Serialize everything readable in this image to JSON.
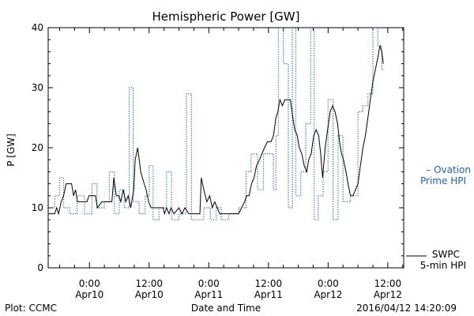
{
  "chart_data": {
    "type": "line",
    "title": "Hemispheric Power [GW]",
    "xlabel": "Date and Time",
    "ylabel": "P [GW]",
    "footer_left": "Plot: CCMC",
    "footer_right": "2016/04/12 14:20:09",
    "x_unit": "hours since 2016-04-09 00:00",
    "xlim": [
      15.7,
      87.2
    ],
    "ylim": [
      0,
      40
    ],
    "y_ticks": [
      0,
      10,
      20,
      30,
      40
    ],
    "x_ticks": [
      {
        "x": 24,
        "line1": "0:00",
        "line2": "Apr10"
      },
      {
        "x": 36,
        "line1": "12:00",
        "line2": "Apr10"
      },
      {
        "x": 48,
        "line1": "0:00",
        "line2": "Apr11"
      },
      {
        "x": 60,
        "line1": "12:00",
        "line2": "Apr11"
      },
      {
        "x": 72,
        "line1": "0:00",
        "line2": "Apr12"
      },
      {
        "x": 84,
        "line1": "12:00",
        "line2": "Apr12"
      }
    ],
    "legend": [
      {
        "label_line1": "– Ovation",
        "label_line2": "Prime HPI",
        "color": "#1f5fbf",
        "style": "dotted"
      },
      {
        "label_line1": "SWPC",
        "label_line2": "5-min HPI",
        "color": "#000000",
        "style": "solid"
      }
    ],
    "series": [
      {
        "name": "SWPC 5-min HPI",
        "color": "#000000",
        "style": "solid",
        "points": [
          [
            15.8,
            9
          ],
          [
            17.0,
            9
          ],
          [
            17.4,
            10
          ],
          [
            17.8,
            9
          ],
          [
            18.3,
            11
          ],
          [
            18.8,
            12
          ],
          [
            19.3,
            14
          ],
          [
            20.4,
            14
          ],
          [
            20.8,
            12
          ],
          [
            21.2,
            13
          ],
          [
            21.6,
            11
          ],
          [
            23.5,
            11
          ],
          [
            23.9,
            12
          ],
          [
            25.2,
            12
          ],
          [
            25.6,
            10
          ],
          [
            26.5,
            11
          ],
          [
            28.5,
            11
          ],
          [
            28.9,
            15
          ],
          [
            29.4,
            12
          ],
          [
            29.9,
            12
          ],
          [
            30.3,
            11
          ],
          [
            30.8,
            13
          ],
          [
            31.3,
            11
          ],
          [
            31.8,
            12
          ],
          [
            32.3,
            10
          ],
          [
            32.9,
            13
          ],
          [
            33.2,
            18
          ],
          [
            33.7,
            20
          ],
          [
            34.3,
            16
          ],
          [
            35.0,
            14
          ],
          [
            35.4,
            13
          ],
          [
            35.9,
            11
          ],
          [
            36.4,
            10
          ],
          [
            38.8,
            10
          ],
          [
            39.1,
            9
          ],
          [
            39.5,
            10
          ],
          [
            40.0,
            9
          ],
          [
            40.4,
            10
          ],
          [
            41.0,
            9
          ],
          [
            42.0,
            10
          ],
          [
            42.6,
            9
          ],
          [
            43.2,
            10
          ],
          [
            44.0,
            9
          ],
          [
            46.2,
            9
          ],
          [
            46.5,
            15
          ],
          [
            47.0,
            13
          ],
          [
            47.6,
            11
          ],
          [
            48.2,
            12
          ],
          [
            48.7,
            10
          ],
          [
            49.2,
            11
          ],
          [
            49.7,
            10
          ],
          [
            50.2,
            9
          ],
          [
            54.0,
            9
          ],
          [
            55.2,
            11
          ],
          [
            55.6,
            12
          ],
          [
            56.1,
            12
          ],
          [
            56.6,
            14
          ],
          [
            57.1,
            15
          ],
          [
            57.6,
            17
          ],
          [
            58.2,
            18
          ],
          [
            58.7,
            19
          ],
          [
            59.2,
            20
          ],
          [
            59.8,
            21
          ],
          [
            60.5,
            21
          ],
          [
            61.0,
            22
          ],
          [
            61.5,
            25
          ],
          [
            61.9,
            26
          ],
          [
            62.3,
            28
          ],
          [
            62.8,
            27
          ],
          [
            63.3,
            28
          ],
          [
            64.4,
            28
          ],
          [
            64.9,
            25
          ],
          [
            65.3,
            23
          ],
          [
            65.8,
            22
          ],
          [
            66.2,
            20
          ],
          [
            66.7,
            19
          ],
          [
            67.2,
            17
          ],
          [
            67.7,
            16
          ],
          [
            68.1,
            18
          ],
          [
            68.6,
            19
          ],
          [
            69.1,
            22
          ],
          [
            69.6,
            23
          ],
          [
            70.1,
            22
          ],
          [
            70.5,
            19
          ],
          [
            70.9,
            15
          ],
          [
            71.4,
            20
          ],
          [
            71.9,
            23
          ],
          [
            72.4,
            26
          ],
          [
            72.9,
            27
          ],
          [
            73.4,
            26
          ],
          [
            73.9,
            24
          ],
          [
            74.3,
            21
          ],
          [
            74.7,
            19
          ],
          [
            75.1,
            18
          ],
          [
            75.6,
            16
          ],
          [
            76.0,
            14
          ],
          [
            76.5,
            12
          ],
          [
            77.0,
            12
          ],
          [
            77.5,
            13
          ],
          [
            78.0,
            14
          ],
          [
            78.5,
            17
          ],
          [
            79.0,
            20
          ],
          [
            79.5,
            22
          ],
          [
            80.0,
            25
          ],
          [
            80.5,
            28
          ],
          [
            81.0,
            31
          ],
          [
            81.5,
            33
          ],
          [
            82.0,
            35
          ],
          [
            82.4,
            37
          ],
          [
            82.8,
            36
          ],
          [
            83.1,
            34
          ]
        ]
      },
      {
        "name": "Ovation Prime HPI",
        "color": "#1f5fbf",
        "style": "dotted",
        "step": true,
        "points": [
          [
            15.8,
            10
          ],
          [
            17.0,
            12
          ],
          [
            18.0,
            15
          ],
          [
            18.8,
            10
          ],
          [
            20.0,
            9
          ],
          [
            21.5,
            12
          ],
          [
            23.0,
            9
          ],
          [
            24.5,
            14
          ],
          [
            25.5,
            10
          ],
          [
            27.0,
            11
          ],
          [
            28.0,
            16
          ],
          [
            29.0,
            9
          ],
          [
            30.0,
            13
          ],
          [
            31.0,
            10
          ],
          [
            32.0,
            30
          ],
          [
            32.8,
            11
          ],
          [
            34.0,
            9
          ],
          [
            35.2,
            12
          ],
          [
            36.0,
            17
          ],
          [
            36.8,
            8
          ],
          [
            38.0,
            10
          ],
          [
            39.5,
            16
          ],
          [
            40.5,
            8
          ],
          [
            42.0,
            9
          ],
          [
            43.5,
            29
          ],
          [
            44.5,
            8
          ],
          [
            47.0,
            10
          ],
          [
            48.3,
            8
          ],
          [
            49.5,
            10
          ],
          [
            50.5,
            8
          ],
          [
            52.0,
            9
          ],
          [
            54.0,
            10
          ],
          [
            55.5,
            16
          ],
          [
            56.5,
            19
          ],
          [
            57.8,
            13
          ],
          [
            59.0,
            19
          ],
          [
            60.5,
            19
          ],
          [
            61.0,
            13
          ],
          [
            61.5,
            22
          ],
          [
            62.0,
            40
          ],
          [
            63.0,
            34
          ],
          [
            64.0,
            10
          ],
          [
            64.8,
            40
          ],
          [
            65.5,
            12
          ],
          [
            66.5,
            16
          ],
          [
            67.5,
            24
          ],
          [
            68.5,
            40
          ],
          [
            69.2,
            8
          ],
          [
            70.0,
            12
          ],
          [
            71.0,
            16
          ],
          [
            72.0,
            28
          ],
          [
            73.0,
            8
          ],
          [
            74.0,
            22
          ],
          [
            75.0,
            11
          ],
          [
            76.5,
            12
          ],
          [
            78.0,
            26
          ],
          [
            79.0,
            27
          ],
          [
            80.0,
            29
          ],
          [
            81.0,
            40
          ],
          [
            82.0,
            37
          ],
          [
            82.8,
            33
          ],
          [
            83.1,
            33
          ]
        ]
      }
    ]
  }
}
